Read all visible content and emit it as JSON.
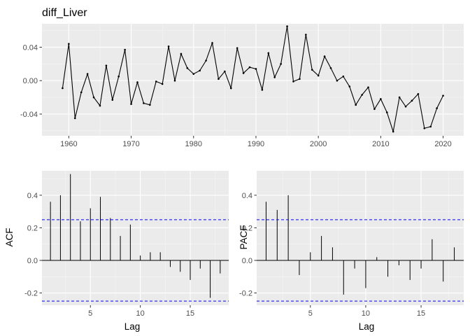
{
  "chart_data": [
    {
      "id": "series",
      "type": "line",
      "title": "diff_Liver",
      "xlabel": "",
      "ylabel": "",
      "xlim": [
        1955.7,
        2023.3
      ],
      "ylim": [
        -0.066,
        0.068
      ],
      "xticks": [
        1960,
        1970,
        1980,
        1990,
        2000,
        2010,
        2020
      ],
      "xtick_labels": [
        "1960",
        "1970",
        "1980",
        "1990",
        "2000",
        "2010",
        "2020"
      ],
      "yticks": [
        -0.04,
        0.0,
        0.04
      ],
      "ytick_labels": [
        "-0.04",
        "0.00",
        "0.04"
      ],
      "grid": true,
      "x": [
        1959,
        1960,
        1961,
        1962,
        1963,
        1964,
        1965,
        1966,
        1967,
        1968,
        1969,
        1970,
        1971,
        1972,
        1973,
        1974,
        1975,
        1976,
        1977,
        1978,
        1979,
        1980,
        1981,
        1982,
        1983,
        1984,
        1985,
        1986,
        1987,
        1988,
        1989,
        1990,
        1991,
        1992,
        1993,
        1994,
        1995,
        1996,
        1997,
        1998,
        1999,
        2000,
        2001,
        2002,
        2003,
        2004,
        2005,
        2006,
        2007,
        2008,
        2009,
        2010,
        2011,
        2012,
        2013,
        2014,
        2015,
        2016,
        2017,
        2018,
        2019,
        2020
      ],
      "y": [
        -0.009,
        0.044,
        -0.045,
        -0.014,
        0.008,
        -0.02,
        -0.03,
        0.018,
        -0.023,
        0.005,
        0.037,
        -0.028,
        -0.002,
        -0.027,
        -0.029,
        -0.001,
        -0.004,
        0.041,
        0.0,
        0.032,
        0.015,
        0.008,
        0.012,
        0.024,
        0.045,
        0.002,
        0.011,
        -0.009,
        0.039,
        0.009,
        0.016,
        0.014,
        -0.011,
        0.033,
        0.004,
        0.02,
        0.065,
        -0.001,
        0.002,
        0.055,
        0.013,
        0.006,
        0.029,
        0.015,
        0.0,
        0.005,
        -0.007,
        -0.029,
        -0.017,
        -0.008,
        -0.034,
        -0.022,
        -0.038,
        -0.061,
        -0.02,
        -0.031,
        -0.024,
        -0.016,
        -0.057,
        -0.055,
        -0.033,
        -0.018
      ]
    },
    {
      "id": "acf",
      "type": "bar",
      "title": "",
      "xlabel": "Lag",
      "ylabel": "ACF",
      "xlim": [
        0.15,
        18.85
      ],
      "ylim": [
        -0.275,
        0.55
      ],
      "xticks": [
        5,
        10,
        15
      ],
      "xtick_labels": [
        "5",
        "10",
        "15"
      ],
      "yticks": [
        -0.2,
        0.0,
        0.2,
        0.4
      ],
      "ytick_labels": [
        "-0.2",
        "0.0",
        "0.2",
        "0.4"
      ],
      "ci": [
        0.25,
        -0.25
      ],
      "grid": true,
      "lags": [
        1,
        2,
        3,
        4,
        5,
        6,
        7,
        8,
        9,
        10,
        11,
        12,
        13,
        14,
        15,
        16,
        17,
        18
      ],
      "values": [
        0.36,
        0.4,
        0.53,
        0.24,
        0.32,
        0.39,
        0.26,
        0.15,
        0.22,
        0.03,
        0.05,
        0.05,
        -0.04,
        -0.07,
        -0.12,
        -0.05,
        -0.23,
        -0.08
      ]
    },
    {
      "id": "pacf",
      "type": "bar",
      "title": "",
      "xlabel": "Lag",
      "ylabel": "PACF",
      "xlim": [
        0.15,
        18.85
      ],
      "ylim": [
        -0.275,
        0.55
      ],
      "xticks": [
        5,
        10,
        15
      ],
      "xtick_labels": [
        "5",
        "10",
        "15"
      ],
      "yticks": [
        -0.2,
        0.0,
        0.2,
        0.4
      ],
      "ytick_labels": [
        "-0.2",
        "0.0",
        "0.2",
        "0.4"
      ],
      "ci": [
        0.25,
        -0.25
      ],
      "grid": true,
      "lags": [
        1,
        2,
        3,
        4,
        5,
        6,
        7,
        8,
        9,
        10,
        11,
        12,
        13,
        14,
        15,
        16,
        17,
        18
      ],
      "values": [
        0.36,
        0.31,
        0.4,
        -0.09,
        0.05,
        0.15,
        0.08,
        -0.21,
        -0.05,
        -0.17,
        0.02,
        -0.1,
        -0.03,
        -0.12,
        -0.05,
        0.13,
        -0.13,
        0.08
      ]
    }
  ]
}
